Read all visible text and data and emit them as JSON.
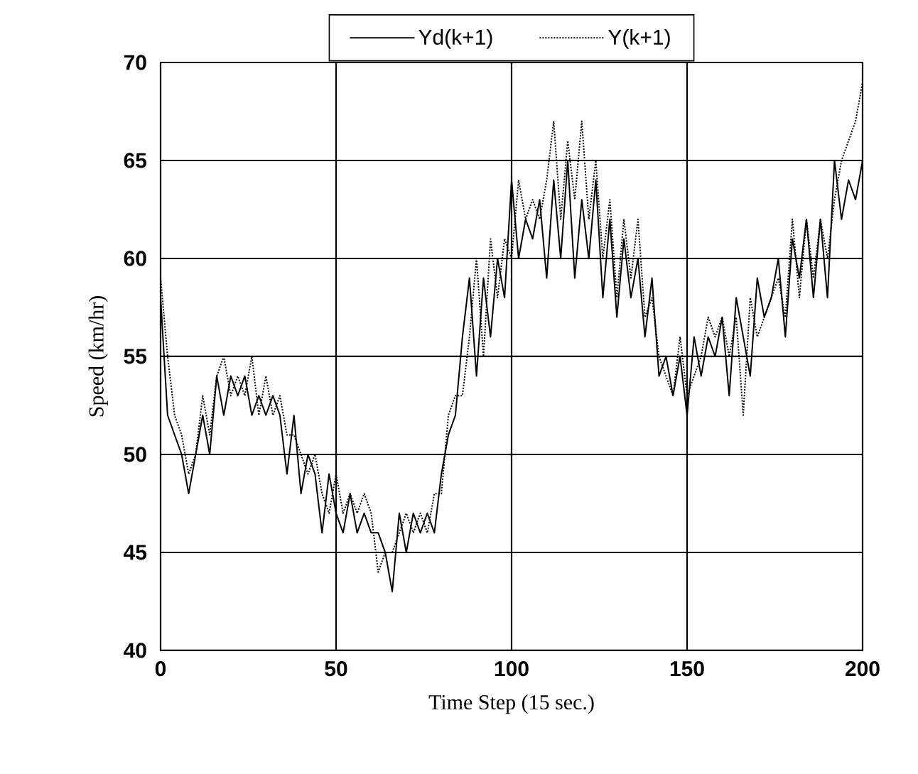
{
  "chart_data": {
    "type": "line",
    "xlabel": "Time Step (15 sec.)",
    "ylabel": "Speed (km/hr)",
    "x": [
      0,
      2,
      4,
      6,
      8,
      10,
      12,
      14,
      16,
      18,
      20,
      22,
      24,
      26,
      28,
      30,
      32,
      34,
      36,
      38,
      40,
      42,
      44,
      46,
      48,
      50,
      52,
      54,
      56,
      58,
      60,
      62,
      64,
      66,
      68,
      70,
      72,
      74,
      76,
      78,
      80,
      82,
      84,
      86,
      88,
      90,
      92,
      94,
      96,
      98,
      100,
      102,
      104,
      106,
      108,
      110,
      112,
      114,
      116,
      118,
      120,
      122,
      124,
      126,
      128,
      130,
      132,
      134,
      136,
      138,
      140,
      142,
      144,
      146,
      148,
      150,
      152,
      154,
      156,
      158,
      160,
      162,
      164,
      166,
      168,
      170,
      172,
      174,
      176,
      178,
      180,
      182,
      184,
      186,
      188,
      190,
      192,
      194,
      196,
      198,
      200
    ],
    "series": [
      {
        "name": "Yd(k+1)",
        "color": "#000000",
        "line_style": "solid",
        "values": [
          58,
          52,
          51,
          50,
          48,
          50,
          52,
          50,
          54,
          52,
          54,
          53,
          54,
          52,
          53,
          52,
          53,
          52,
          49,
          52,
          48,
          50,
          49,
          46,
          49,
          47,
          46,
          48,
          46,
          47,
          46,
          46,
          45,
          43,
          47,
          45,
          47,
          46,
          47,
          46,
          49,
          51,
          52,
          56,
          59,
          54,
          59,
          56,
          60,
          58,
          64,
          60,
          62,
          61,
          63,
          59,
          64,
          60,
          65,
          59,
          63,
          60,
          64,
          58,
          62,
          57,
          61,
          58,
          60,
          56,
          59,
          54,
          55,
          53,
          55,
          52,
          56,
          54,
          56,
          55,
          57,
          53,
          58,
          56,
          54,
          59,
          57,
          58,
          60,
          56,
          61,
          59,
          62,
          58,
          62,
          58,
          65,
          62,
          64,
          63,
          65
        ]
      },
      {
        "name": "Y(k+1)",
        "color": "#000000",
        "line_style": "dotted",
        "values": [
          59,
          55,
          52,
          51,
          49,
          50,
          53,
          51,
          54,
          55,
          53,
          54,
          53,
          55,
          52,
          54,
          52,
          53,
          51,
          51,
          50,
          49,
          50,
          48,
          47,
          49,
          47,
          48,
          47,
          48,
          47,
          44,
          45,
          45,
          46,
          47,
          46,
          47,
          46,
          48,
          48,
          52,
          53,
          53,
          56,
          60,
          55,
          61,
          58,
          61,
          60,
          64,
          62,
          63,
          62,
          64,
          67,
          62,
          66,
          63,
          67,
          62,
          65,
          60,
          63,
          58,
          62,
          59,
          62,
          57,
          58,
          55,
          54,
          53,
          56,
          53,
          54,
          55,
          57,
          56,
          57,
          55,
          57,
          52,
          58,
          56,
          57,
          58,
          59,
          57,
          62,
          58,
          62,
          59,
          62,
          60,
          63,
          65,
          66,
          67,
          69
        ]
      }
    ],
    "xlim": [
      0,
      200
    ],
    "ylim": [
      40,
      70
    ],
    "xticks": [
      0,
      50,
      100,
      150,
      200
    ],
    "yticks": [
      40,
      45,
      50,
      55,
      60,
      65,
      70
    ],
    "grid": true,
    "legend": "top",
    "marker": "none"
  }
}
